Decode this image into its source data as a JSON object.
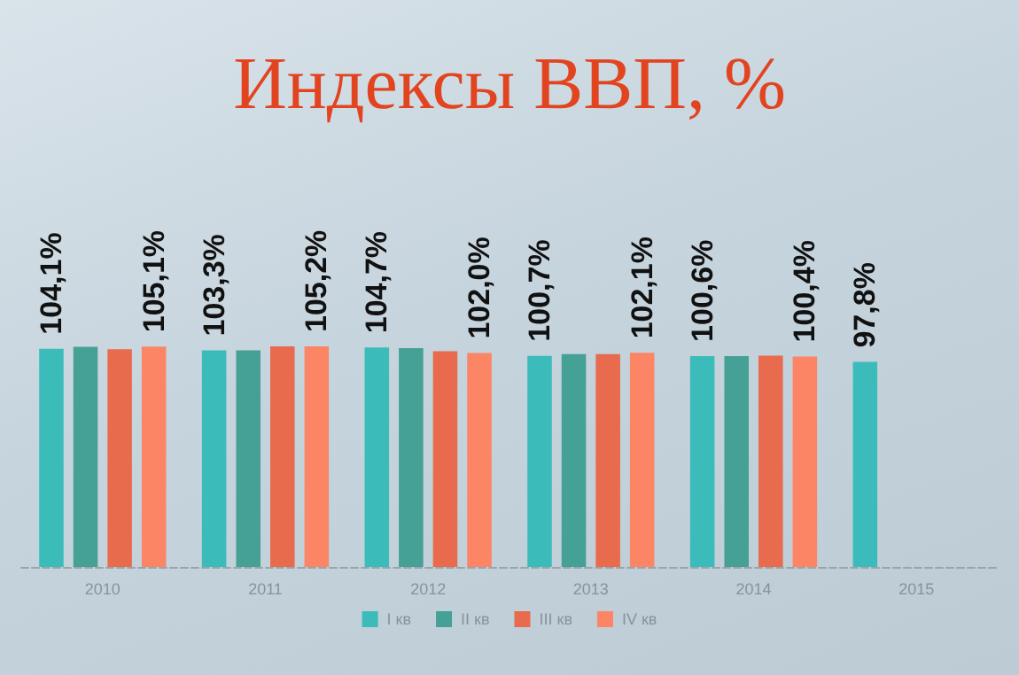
{
  "chart_data": {
    "type": "bar",
    "title": "Индексы ВВП, %",
    "categories": [
      "2010",
      "2011",
      "2012",
      "2013",
      "2014",
      "2015"
    ],
    "series": [
      {
        "name": "I кв",
        "color": "#3bbcba",
        "values": [
          104.1,
          103.3,
          104.7,
          100.7,
          100.6,
          97.8
        ],
        "value_labels": [
          "104,1%",
          "103,3%",
          "104,7%",
          "100,7%",
          "100,6%",
          "97,8%"
        ]
      },
      {
        "name": "II кв",
        "color": "#45a095",
        "values": [
          105.0,
          103.3,
          104.4,
          101.5,
          100.6,
          0
        ],
        "value_labels": [
          null,
          null,
          null,
          null,
          null,
          null
        ]
      },
      {
        "name": "III кв",
        "color": "#e86b4d",
        "values": [
          103.8,
          105.2,
          102.9,
          101.5,
          100.8,
          0
        ],
        "value_labels": [
          null,
          null,
          null,
          null,
          null,
          null
        ]
      },
      {
        "name": "IV кв",
        "color": "#fc8566",
        "values": [
          105.1,
          105.2,
          102.0,
          102.1,
          100.4,
          0
        ],
        "value_labels": [
          "105,1%",
          "105,2%",
          "102,0%",
          "102,1%",
          "100,4%",
          null
        ]
      }
    ],
    "tick_labels": "x",
    "legend": "bottom"
  }
}
